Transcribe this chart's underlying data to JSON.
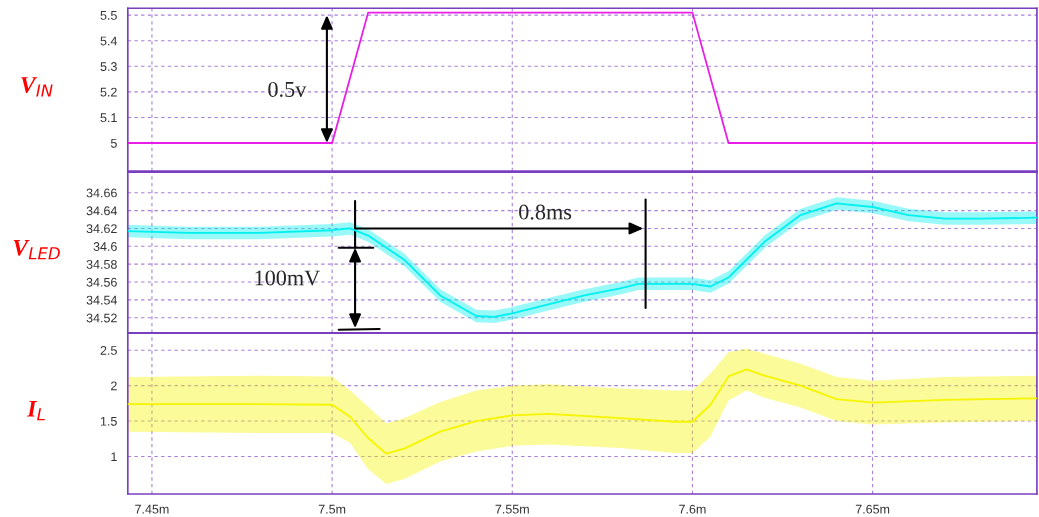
{
  "chart_data": [
    {
      "type": "line",
      "ylabel": "V$_{IN}$",
      "x": [
        7.4433,
        7.5,
        7.51,
        7.6,
        7.61,
        7.6956
      ],
      "series": [
        {
          "color": "#e81ee8",
          "values": [
            5,
            5,
            5.51,
            5.51,
            5,
            5
          ]
        }
      ],
      "xlim": [
        7.4433,
        7.6956
      ],
      "ylim": [
        4.89,
        5.527
      ],
      "xticks": [
        {
          "value": 7.45,
          "label": null
        },
        {
          "value": 7.5,
          "label": null
        },
        {
          "value": 7.55,
          "label": null
        },
        {
          "value": 7.6,
          "label": null
        },
        {
          "value": 7.65,
          "label": null
        }
      ],
      "yticks": [
        5,
        5.1,
        5.2,
        5.3,
        5.4,
        5.5
      ],
      "grid": true,
      "tick_labels": "y",
      "annotations": [
        "0.5v"
      ]
    },
    {
      "type": "line",
      "ylabel": "V$_{LED}$",
      "x": [
        7.4433,
        7.46,
        7.48,
        7.5,
        7.505,
        7.51,
        7.52,
        7.53,
        7.54,
        7.545,
        7.55,
        7.56,
        7.57,
        7.58,
        7.585,
        7.6,
        7.605,
        7.61,
        7.62,
        7.63,
        7.64,
        7.65,
        7.66,
        7.67,
        7.68,
        7.6956
      ],
      "series": [
        {
          "color": "#00f0f0",
          "values": [
            34.617,
            34.615,
            34.615,
            34.618,
            34.62,
            34.612,
            34.585,
            34.545,
            34.522,
            34.521,
            34.525,
            34.535,
            34.545,
            34.553,
            34.558,
            34.558,
            34.555,
            34.565,
            34.605,
            34.635,
            34.648,
            34.644,
            34.635,
            34.631,
            34.631,
            34.632
          ],
          "lower": [
            34.61,
            34.608,
            34.608,
            34.611,
            34.613,
            34.605,
            34.578,
            34.538,
            34.515,
            34.514,
            34.518,
            34.528,
            34.538,
            34.546,
            34.551,
            34.551,
            34.548,
            34.558,
            34.598,
            34.628,
            34.641,
            34.637,
            34.628,
            34.624,
            34.624,
            34.625
          ],
          "upper": [
            34.624,
            34.622,
            34.622,
            34.625,
            34.627,
            34.619,
            34.592,
            34.552,
            34.529,
            34.528,
            34.532,
            34.542,
            34.552,
            34.56,
            34.565,
            34.565,
            34.562,
            34.572,
            34.612,
            34.642,
            34.655,
            34.651,
            34.642,
            34.638,
            34.638,
            34.639
          ]
        }
      ],
      "xlim": [
        7.4433,
        7.6956
      ],
      "ylim": [
        34.503,
        34.683
      ],
      "xticks": [
        {
          "value": 7.45,
          "label": null
        },
        {
          "value": 7.5,
          "label": null
        },
        {
          "value": 7.55,
          "label": null
        },
        {
          "value": 7.6,
          "label": null
        },
        {
          "value": 7.65,
          "label": null
        }
      ],
      "yticks": [
        34.52,
        34.54,
        34.56,
        34.58,
        34.6,
        34.62,
        34.64,
        34.66
      ],
      "grid": true,
      "tick_labels": "y",
      "annotations": [
        "0.8ms",
        "100mV"
      ],
      "ref_lines": [
        {
          "axis": "x",
          "value": 7.587,
          "color": "#000000"
        }
      ]
    },
    {
      "type": "line",
      "ylabel": "I$_{L}$",
      "x": [
        7.4433,
        7.48,
        7.5,
        7.505,
        7.51,
        7.515,
        7.52,
        7.53,
        7.54,
        7.55,
        7.56,
        7.58,
        7.595,
        7.6,
        7.605,
        7.61,
        7.615,
        7.62,
        7.63,
        7.64,
        7.65,
        7.67,
        7.6956
      ],
      "series": [
        {
          "color": "#f5f500",
          "values": [
            1.74,
            1.74,
            1.73,
            1.56,
            1.26,
            1.04,
            1.11,
            1.35,
            1.5,
            1.58,
            1.6,
            1.54,
            1.49,
            1.49,
            1.73,
            2.13,
            2.23,
            2.14,
            2.0,
            1.81,
            1.76,
            1.8,
            1.82
          ],
          "lower": [
            1.35,
            1.33,
            1.33,
            1.19,
            0.82,
            0.61,
            0.68,
            0.93,
            1.07,
            1.15,
            1.17,
            1.12,
            1.05,
            1.05,
            1.28,
            1.79,
            1.93,
            1.83,
            1.69,
            1.5,
            1.45,
            1.48,
            1.5
          ],
          "upper": [
            2.12,
            2.14,
            2.13,
            1.93,
            1.7,
            1.47,
            1.54,
            1.77,
            1.93,
            2.0,
            2.02,
            1.96,
            1.93,
            1.93,
            2.17,
            2.47,
            2.52,
            2.45,
            2.31,
            2.12,
            2.07,
            2.12,
            2.14
          ]
        }
      ],
      "xlim": [
        7.4433,
        7.6956
      ],
      "ylim": [
        0.47,
        2.74
      ],
      "xticks": [
        {
          "value": 7.45,
          "label": "7.45m"
        },
        {
          "value": 7.5,
          "label": "7.5m"
        },
        {
          "value": 7.55,
          "label": "7.55m"
        },
        {
          "value": 7.6,
          "label": "7.6m"
        },
        {
          "value": 7.65,
          "label": "7.65m"
        }
      ],
      "yticks": [
        1,
        1.5,
        2,
        2.5
      ],
      "grid": true
    }
  ]
}
